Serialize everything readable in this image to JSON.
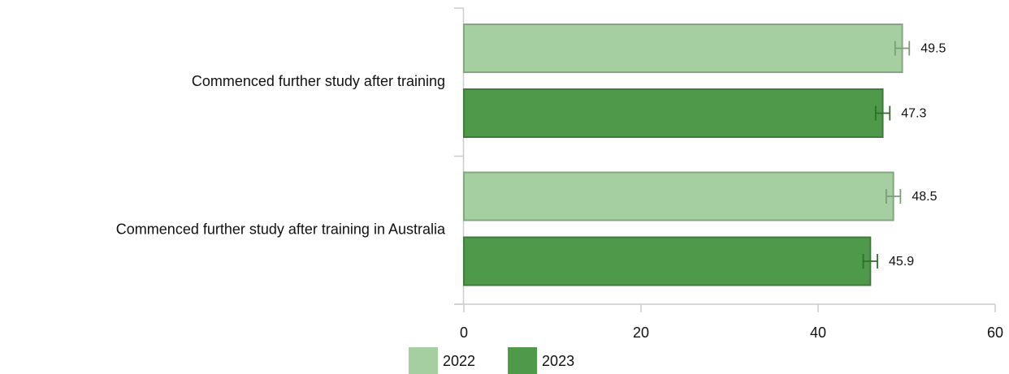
{
  "chart_data": {
    "type": "bar",
    "orientation": "horizontal",
    "categories": [
      "Commenced further study after training",
      "Commenced further study after training in Australia"
    ],
    "series": [
      {
        "name": "2022",
        "color": "#a5cfa0",
        "values": [
          49.5,
          48.5
        ],
        "errors": [
          0.8,
          0.8
        ]
      },
      {
        "name": "2023",
        "color": "#4f9a4a",
        "values": [
          47.3,
          45.9
        ],
        "errors": [
          0.8,
          0.8
        ]
      }
    ],
    "xlim": [
      0,
      60
    ],
    "xticks": [
      0,
      20,
      40,
      60
    ],
    "grid": false,
    "legend": "bottom"
  }
}
